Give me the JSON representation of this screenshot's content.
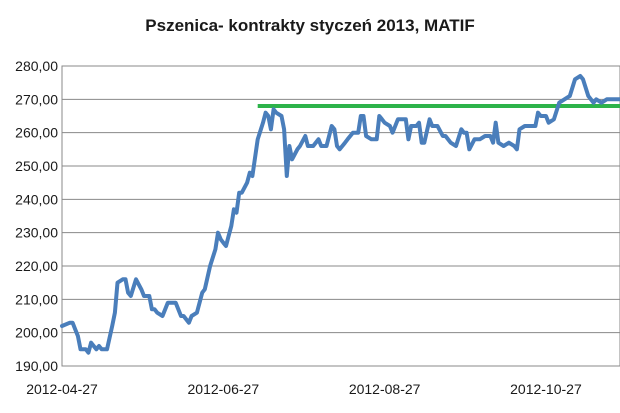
{
  "chart_data": {
    "type": "line",
    "title": "Pszenica- kontrakty styczeń 2013, MATIF",
    "xlabel": "",
    "ylabel": "",
    "ylim": [
      190,
      280
    ],
    "yticks": [
      "190,00",
      "200,00",
      "210,00",
      "220,00",
      "230,00",
      "240,00",
      "250,00",
      "260,00",
      "270,00",
      "280,00"
    ],
    "xticks": [
      "2012-04-27",
      "2012-06-27",
      "2012-08-27",
      "2012-10-27"
    ],
    "grid": "horizontal",
    "legend": "none",
    "series_color": "#4a7ebb",
    "reference_color": "#2db34a",
    "reference_line": {
      "value": 268,
      "x_start": "2012-07-10",
      "x_end": "2012-11-24"
    },
    "x_start": "2012-04-27",
    "x_end": "2012-11-24",
    "series": [
      {
        "values": [
          [
            "2012-04-27",
            202
          ],
          [
            "2012-04-30",
            203
          ],
          [
            "2012-05-01",
            203
          ],
          [
            "2012-05-02",
            201
          ],
          [
            "2012-05-03",
            199
          ],
          [
            "2012-05-04",
            195
          ],
          [
            "2012-05-06",
            195
          ],
          [
            "2012-05-07",
            194
          ],
          [
            "2012-05-08",
            197
          ],
          [
            "2012-05-09",
            196
          ],
          [
            "2012-05-10",
            195
          ],
          [
            "2012-05-11",
            196
          ],
          [
            "2012-05-12",
            195
          ],
          [
            "2012-05-14",
            195
          ],
          [
            "2012-05-16",
            202
          ],
          [
            "2012-05-17",
            206
          ],
          [
            "2012-05-18",
            215
          ],
          [
            "2012-05-20",
            216
          ],
          [
            "2012-05-21",
            216
          ],
          [
            "2012-05-22",
            212
          ],
          [
            "2012-05-23",
            211
          ],
          [
            "2012-05-25",
            216
          ],
          [
            "2012-05-27",
            213
          ],
          [
            "2012-05-28",
            211
          ],
          [
            "2012-05-30",
            211
          ],
          [
            "2012-05-31",
            207
          ],
          [
            "2012-06-01",
            207
          ],
          [
            "2012-06-02",
            206
          ],
          [
            "2012-06-04",
            205
          ],
          [
            "2012-06-06",
            209
          ],
          [
            "2012-06-07",
            209
          ],
          [
            "2012-06-09",
            209
          ],
          [
            "2012-06-11",
            205
          ],
          [
            "2012-06-12",
            205
          ],
          [
            "2012-06-14",
            203
          ],
          [
            "2012-06-15",
            205
          ],
          [
            "2012-06-17",
            206
          ],
          [
            "2012-06-19",
            212
          ],
          [
            "2012-06-20",
            213
          ],
          [
            "2012-06-22",
            220
          ],
          [
            "2012-06-24",
            225
          ],
          [
            "2012-06-25",
            230
          ],
          [
            "2012-06-26",
            228
          ],
          [
            "2012-06-27",
            227
          ],
          [
            "2012-06-28",
            226
          ],
          [
            "2012-06-29",
            229
          ],
          [
            "2012-06-30",
            232
          ],
          [
            "2012-07-01",
            237
          ],
          [
            "2012-07-02",
            236
          ],
          [
            "2012-07-03",
            242
          ],
          [
            "2012-07-04",
            242
          ],
          [
            "2012-07-06",
            245
          ],
          [
            "2012-07-07",
            248
          ],
          [
            "2012-07-08",
            247
          ],
          [
            "2012-07-10",
            258
          ],
          [
            "2012-07-12",
            263
          ],
          [
            "2012-07-13",
            266
          ],
          [
            "2012-07-14",
            265
          ],
          [
            "2012-07-15",
            261
          ],
          [
            "2012-07-16",
            267
          ],
          [
            "2012-07-17",
            266
          ],
          [
            "2012-07-19",
            265
          ],
          [
            "2012-07-20",
            261
          ],
          [
            "2012-07-21",
            247
          ],
          [
            "2012-07-22",
            256
          ],
          [
            "2012-07-23",
            252
          ],
          [
            "2012-07-25",
            255
          ],
          [
            "2012-07-26",
            256
          ],
          [
            "2012-07-28",
            259
          ],
          [
            "2012-07-29",
            256
          ],
          [
            "2012-07-31",
            256
          ],
          [
            "2012-08-02",
            258
          ],
          [
            "2012-08-03",
            256
          ],
          [
            "2012-08-05",
            256
          ],
          [
            "2012-08-07",
            262
          ],
          [
            "2012-08-08",
            261
          ],
          [
            "2012-08-09",
            256
          ],
          [
            "2012-08-10",
            255
          ],
          [
            "2012-08-12",
            257
          ],
          [
            "2012-08-13",
            258
          ],
          [
            "2012-08-15",
            260
          ],
          [
            "2012-08-17",
            260
          ],
          [
            "2012-08-18",
            265
          ],
          [
            "2012-08-19",
            265
          ],
          [
            "2012-08-20",
            259
          ],
          [
            "2012-08-22",
            258
          ],
          [
            "2012-08-24",
            258
          ],
          [
            "2012-08-25",
            265
          ],
          [
            "2012-08-26",
            264
          ],
          [
            "2012-08-27",
            263
          ],
          [
            "2012-08-29",
            262
          ],
          [
            "2012-08-30",
            260
          ],
          [
            "2012-09-01",
            264
          ],
          [
            "2012-09-03",
            264
          ],
          [
            "2012-09-04",
            264
          ],
          [
            "2012-09-05",
            258
          ],
          [
            "2012-09-06",
            262
          ],
          [
            "2012-09-08",
            262
          ],
          [
            "2012-09-09",
            263
          ],
          [
            "2012-09-10",
            257
          ],
          [
            "2012-09-11",
            257
          ],
          [
            "2012-09-13",
            264
          ],
          [
            "2012-09-14",
            262
          ],
          [
            "2012-09-16",
            262
          ],
          [
            "2012-09-18",
            259
          ],
          [
            "2012-09-19",
            259
          ],
          [
            "2012-09-21",
            257
          ],
          [
            "2012-09-23",
            256
          ],
          [
            "2012-09-25",
            261
          ],
          [
            "2012-09-26",
            260
          ],
          [
            "2012-09-27",
            260
          ],
          [
            "2012-09-28",
            255
          ],
          [
            "2012-09-30",
            258
          ],
          [
            "2012-10-02",
            258
          ],
          [
            "2012-10-04",
            259
          ],
          [
            "2012-10-06",
            259
          ],
          [
            "2012-10-07",
            257
          ],
          [
            "2012-10-08",
            263
          ],
          [
            "2012-10-09",
            257
          ],
          [
            "2012-10-11",
            256
          ],
          [
            "2012-10-13",
            257
          ],
          [
            "2012-10-15",
            256
          ],
          [
            "2012-10-16",
            255
          ],
          [
            "2012-10-17",
            261
          ],
          [
            "2012-10-19",
            262
          ],
          [
            "2012-10-21",
            262
          ],
          [
            "2012-10-23",
            262
          ],
          [
            "2012-10-24",
            266
          ],
          [
            "2012-10-25",
            265
          ],
          [
            "2012-10-26",
            265
          ],
          [
            "2012-10-27",
            265
          ],
          [
            "2012-10-28",
            263
          ],
          [
            "2012-10-30",
            264
          ],
          [
            "2012-11-01",
            269
          ],
          [
            "2012-11-03",
            270
          ],
          [
            "2012-11-05",
            271
          ],
          [
            "2012-11-07",
            276
          ],
          [
            "2012-11-09",
            277
          ],
          [
            "2012-11-10",
            276
          ],
          [
            "2012-11-12",
            271
          ],
          [
            "2012-11-14",
            269
          ],
          [
            "2012-11-15",
            270
          ],
          [
            "2012-11-17",
            269
          ],
          [
            "2012-11-19",
            270
          ],
          [
            "2012-11-24",
            270
          ]
        ]
      }
    ]
  }
}
